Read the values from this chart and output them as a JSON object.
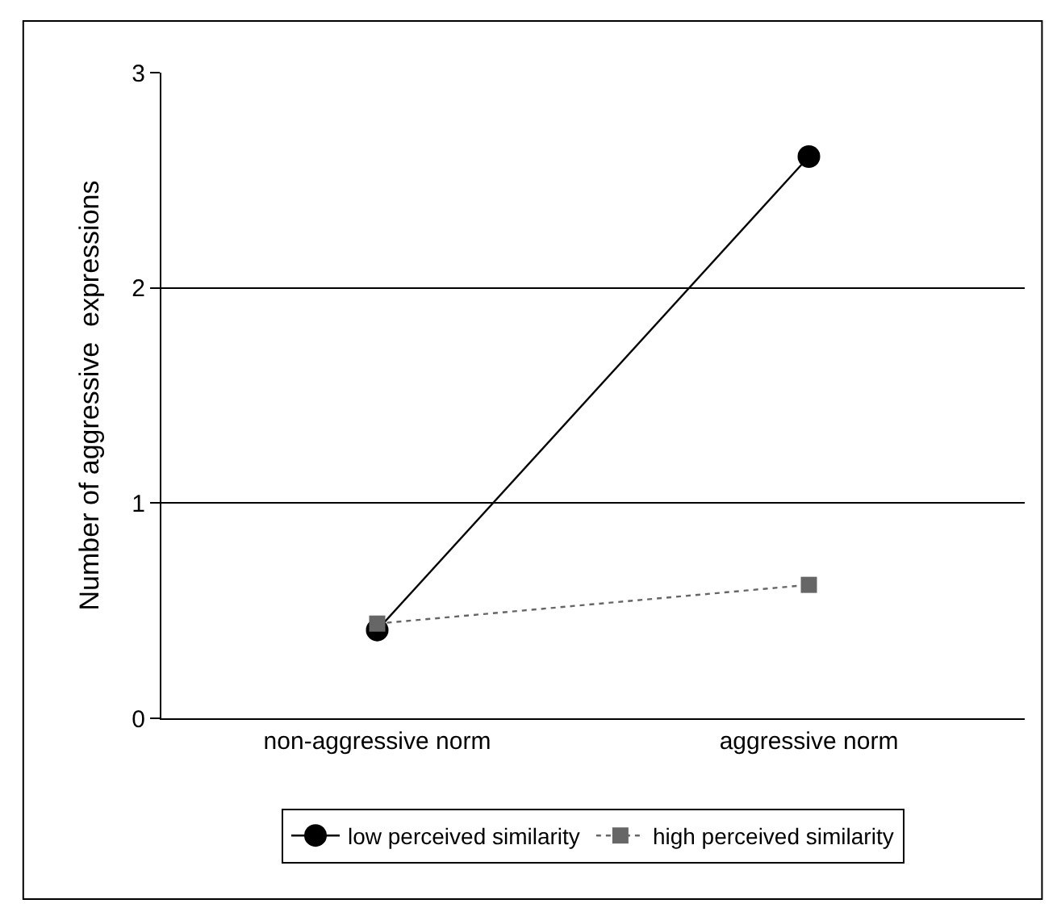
{
  "chart_data": {
    "type": "line",
    "ylabel": "Number of aggressive  expressions",
    "categories": [
      "non-aggressive norm",
      "aggressive norm"
    ],
    "series": [
      {
        "name": "low perceived similarity",
        "color": "#000000",
        "values": [
          0.41,
          2.61
        ],
        "marker": "circle",
        "line_style": "solid"
      },
      {
        "name": "high perceived similarity",
        "color": "#666666",
        "values": [
          0.44,
          0.62
        ],
        "marker": "square",
        "line_style": "dotted"
      }
    ],
    "ylim": [
      0,
      3
    ],
    "yticks": [
      0,
      1,
      2,
      3
    ],
    "grid": "y",
    "legend": "bottom"
  }
}
